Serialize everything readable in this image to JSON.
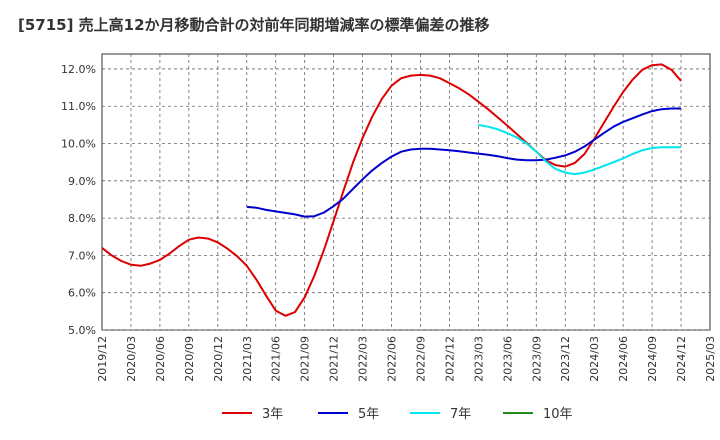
{
  "chart_data": {
    "type": "line",
    "title": "[5715]  売上高12か月移動合計の対前年同期増減率の標準偏差の推移",
    "xlabel": "",
    "ylabel": "",
    "ylim": [
      5.0,
      12.4
    ],
    "y_ticks": [
      "5.0%",
      "6.0%",
      "7.0%",
      "8.0%",
      "9.0%",
      "10.0%",
      "11.0%",
      "12.0%"
    ],
    "y_tick_values": [
      5,
      6,
      7,
      8,
      9,
      10,
      11,
      12
    ],
    "x_ticks": [
      "2019/12",
      "2020/03",
      "2020/06",
      "2020/09",
      "2020/12",
      "2021/03",
      "2021/06",
      "2021/09",
      "2021/12",
      "2022/03",
      "2022/06",
      "2022/09",
      "2022/12",
      "2023/03",
      "2023/06",
      "2023/09",
      "2023/12",
      "2024/03",
      "2024/06",
      "2024/09",
      "2024/12",
      "2025/03"
    ],
    "x_range": [
      "2019/12",
      "2025/03"
    ],
    "grid": true,
    "legend_position": "bottom",
    "series": [
      {
        "name": "3年",
        "color": "#dd0000",
        "points": [
          [
            "2019/12",
            7.2
          ],
          [
            "2020/01",
            7.0
          ],
          [
            "2020/02",
            6.85
          ],
          [
            "2020/03",
            6.75
          ],
          [
            "2020/04",
            6.72
          ],
          [
            "2020/05",
            6.78
          ],
          [
            "2020/06",
            6.88
          ],
          [
            "2020/07",
            7.05
          ],
          [
            "2020/08",
            7.25
          ],
          [
            "2020/09",
            7.42
          ],
          [
            "2020/10",
            7.48
          ],
          [
            "2020/11",
            7.45
          ],
          [
            "2020/12",
            7.35
          ],
          [
            "2021/01",
            7.18
          ],
          [
            "2021/02",
            6.98
          ],
          [
            "2021/03",
            6.72
          ],
          [
            "2021/04",
            6.35
          ],
          [
            "2021/05",
            5.92
          ],
          [
            "2021/06",
            5.52
          ],
          [
            "2021/07",
            5.38
          ],
          [
            "2021/08",
            5.48
          ],
          [
            "2021/09",
            5.88
          ],
          [
            "2021/10",
            6.45
          ],
          [
            "2021/11",
            7.15
          ],
          [
            "2021/12",
            7.92
          ],
          [
            "2022/01",
            8.72
          ],
          [
            "2022/02",
            9.48
          ],
          [
            "2022/03",
            10.15
          ],
          [
            "2022/04",
            10.72
          ],
          [
            "2022/05",
            11.2
          ],
          [
            "2022/06",
            11.55
          ],
          [
            "2022/07",
            11.75
          ],
          [
            "2022/08",
            11.82
          ],
          [
            "2022/09",
            11.84
          ],
          [
            "2022/10",
            11.82
          ],
          [
            "2022/11",
            11.75
          ],
          [
            "2022/12",
            11.62
          ],
          [
            "2023/01",
            11.48
          ],
          [
            "2023/02",
            11.32
          ],
          [
            "2023/03",
            11.12
          ],
          [
            "2023/04",
            10.92
          ],
          [
            "2023/05",
            10.7
          ],
          [
            "2023/06",
            10.48
          ],
          [
            "2023/07",
            10.25
          ],
          [
            "2023/08",
            10.02
          ],
          [
            "2023/09",
            9.78
          ],
          [
            "2023/10",
            9.55
          ],
          [
            "2023/11",
            9.42
          ],
          [
            "2023/12",
            9.38
          ],
          [
            "2024/01",
            9.48
          ],
          [
            "2024/02",
            9.72
          ],
          [
            "2024/03",
            10.12
          ],
          [
            "2024/04",
            10.55
          ],
          [
            "2024/05",
            10.98
          ],
          [
            "2024/06",
            11.38
          ],
          [
            "2024/07",
            11.72
          ],
          [
            "2024/08",
            11.98
          ],
          [
            "2024/09",
            12.1
          ],
          [
            "2024/10",
            12.12
          ],
          [
            "2024/11",
            11.98
          ],
          [
            "2024/12",
            11.68
          ]
        ]
      },
      {
        "name": "5年",
        "color": "#0000cc",
        "points": [
          [
            "2021/03",
            8.3
          ],
          [
            "2021/04",
            8.28
          ],
          [
            "2021/05",
            8.22
          ],
          [
            "2021/06",
            8.18
          ],
          [
            "2021/07",
            8.14
          ],
          [
            "2021/08",
            8.1
          ],
          [
            "2021/09",
            8.04
          ],
          [
            "2021/10",
            8.05
          ],
          [
            "2021/11",
            8.15
          ],
          [
            "2021/12",
            8.32
          ],
          [
            "2022/01",
            8.52
          ],
          [
            "2022/02",
            8.78
          ],
          [
            "2022/03",
            9.04
          ],
          [
            "2022/04",
            9.28
          ],
          [
            "2022/05",
            9.48
          ],
          [
            "2022/06",
            9.65
          ],
          [
            "2022/07",
            9.78
          ],
          [
            "2022/08",
            9.84
          ],
          [
            "2022/09",
            9.86
          ],
          [
            "2022/10",
            9.86
          ],
          [
            "2022/11",
            9.84
          ],
          [
            "2022/12",
            9.82
          ],
          [
            "2023/01",
            9.79
          ],
          [
            "2023/02",
            9.76
          ],
          [
            "2023/03",
            9.73
          ],
          [
            "2023/04",
            9.7
          ],
          [
            "2023/05",
            9.66
          ],
          [
            "2023/06",
            9.61
          ],
          [
            "2023/07",
            9.57
          ],
          [
            "2023/08",
            9.55
          ],
          [
            "2023/09",
            9.55
          ],
          [
            "2023/10",
            9.57
          ],
          [
            "2023/11",
            9.62
          ],
          [
            "2023/12",
            9.68
          ],
          [
            "2024/01",
            9.78
          ],
          [
            "2024/02",
            9.92
          ],
          [
            "2024/03",
            10.1
          ],
          [
            "2024/04",
            10.28
          ],
          [
            "2024/05",
            10.45
          ],
          [
            "2024/06",
            10.58
          ],
          [
            "2024/07",
            10.68
          ],
          [
            "2024/08",
            10.78
          ],
          [
            "2024/09",
            10.87
          ],
          [
            "2024/10",
            10.92
          ],
          [
            "2024/11",
            10.94
          ],
          [
            "2024/12",
            10.94
          ]
        ]
      },
      {
        "name": "7年",
        "color": "#00e5ee",
        "points": [
          [
            "2023/03",
            10.5
          ],
          [
            "2023/04",
            10.45
          ],
          [
            "2023/05",
            10.38
          ],
          [
            "2023/06",
            10.28
          ],
          [
            "2023/07",
            10.16
          ],
          [
            "2023/08",
            10.0
          ],
          [
            "2023/09",
            9.78
          ],
          [
            "2023/10",
            9.52
          ],
          [
            "2023/11",
            9.32
          ],
          [
            "2023/12",
            9.22
          ],
          [
            "2024/01",
            9.18
          ],
          [
            "2024/02",
            9.22
          ],
          [
            "2024/03",
            9.3
          ],
          [
            "2024/04",
            9.4
          ],
          [
            "2024/05",
            9.5
          ],
          [
            "2024/06",
            9.6
          ],
          [
            "2024/07",
            9.72
          ],
          [
            "2024/08",
            9.82
          ],
          [
            "2024/09",
            9.88
          ],
          [
            "2024/10",
            9.9
          ],
          [
            "2024/11",
            9.9
          ],
          [
            "2024/12",
            9.9
          ]
        ]
      },
      {
        "name": "10年",
        "color": "#228b22",
        "points": []
      }
    ]
  }
}
